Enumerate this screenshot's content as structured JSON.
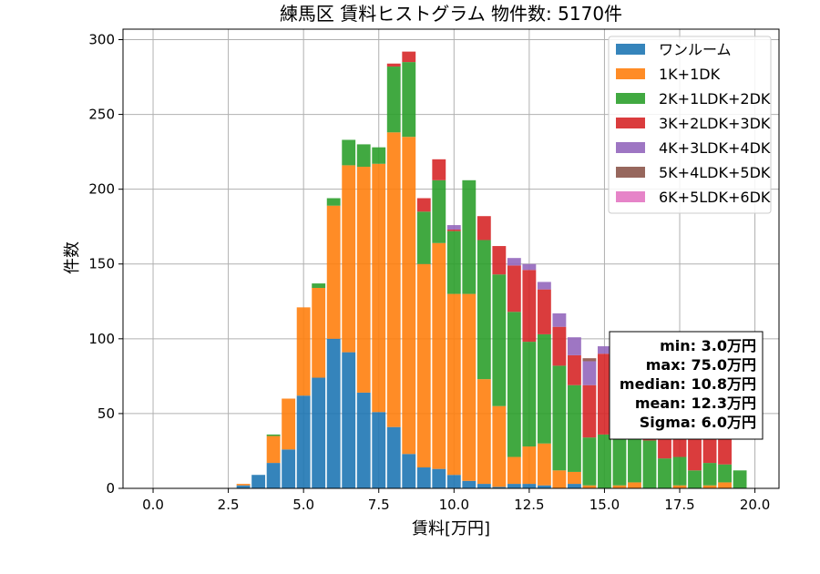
{
  "chart_data": {
    "type": "bar",
    "stacked": true,
    "title": "練馬区 賃料ヒストグラム 物件数: 5170件",
    "xlabel": "賃料[万円]",
    "ylabel": "件数",
    "xlim": [
      -1.0,
      20.8
    ],
    "ylim": [
      0,
      307
    ],
    "xticks": [
      "0.0",
      "2.5",
      "5.0",
      "7.5",
      "10.0",
      "12.5",
      "15.0",
      "17.5",
      "20.0"
    ],
    "yticks": [
      "0",
      "50",
      "100",
      "150",
      "200",
      "250",
      "300"
    ],
    "grid": true,
    "legend_position": "top-right",
    "bin_width": 0.5,
    "x": [
      3.0,
      3.5,
      4.0,
      4.5,
      5.0,
      5.5,
      6.0,
      6.5,
      7.0,
      7.5,
      8.0,
      8.5,
      9.0,
      9.5,
      10.0,
      10.5,
      11.0,
      11.5,
      12.0,
      12.5,
      13.0,
      13.5,
      14.0,
      14.5,
      15.0,
      15.5,
      16.0,
      16.5,
      17.0,
      17.5,
      18.0,
      18.5,
      19.0,
      19.5
    ],
    "series": [
      {
        "name": "ワンルーム",
        "color": "#1f77b4",
        "values": [
          2,
          9,
          17,
          26,
          62,
          74,
          100,
          91,
          64,
          51,
          41,
          23,
          14,
          13,
          9,
          5,
          3,
          1,
          3,
          3,
          2,
          0,
          3,
          0,
          0,
          0,
          0,
          0,
          0,
          0,
          0,
          0,
          0,
          0
        ]
      },
      {
        "name": "1K+1DK",
        "color": "#ff7f0e",
        "values": [
          1,
          0,
          18,
          34,
          59,
          60,
          89,
          125,
          151,
          166,
          197,
          212,
          136,
          151,
          121,
          125,
          70,
          54,
          18,
          25,
          28,
          12,
          8,
          2,
          0,
          2,
          4,
          0,
          0,
          2,
          0,
          2,
          4,
          0
        ]
      },
      {
        "name": "2K+1LDK+2DK",
        "color": "#2ca02c",
        "values": [
          0,
          0,
          1,
          0,
          0,
          3,
          5,
          17,
          15,
          11,
          44,
          50,
          35,
          42,
          42,
          76,
          93,
          88,
          97,
          70,
          73,
          70,
          58,
          32,
          36,
          36,
          31,
          32,
          20,
          19,
          12,
          15,
          12,
          12
        ]
      },
      {
        "name": "3K+2LDK+3DK",
        "color": "#d62728",
        "values": [
          0,
          0,
          0,
          0,
          0,
          0,
          0,
          0,
          0,
          0,
          2,
          7,
          9,
          14,
          1,
          0,
          16,
          19,
          31,
          48,
          30,
          26,
          20,
          35,
          54,
          52,
          57,
          43,
          35,
          40,
          37,
          30,
          32,
          0
        ]
      },
      {
        "name": "4K+3LDK+4DK",
        "color": "#9467bd",
        "values": [
          0,
          0,
          0,
          0,
          0,
          0,
          0,
          0,
          0,
          0,
          0,
          0,
          0,
          0,
          3,
          0,
          0,
          0,
          5,
          4,
          5,
          9,
          12,
          16,
          5,
          7,
          9,
          0,
          0,
          0,
          0,
          0,
          0,
          0
        ]
      },
      {
        "name": "5K+4LDK+5DK",
        "color": "#8c564b",
        "values": [
          0,
          0,
          0,
          0,
          0,
          0,
          0,
          0,
          0,
          0,
          0,
          0,
          0,
          0,
          0,
          0,
          0,
          0,
          0,
          0,
          0,
          0,
          0,
          2,
          0,
          0,
          0,
          0,
          0,
          0,
          0,
          0,
          0,
          0
        ]
      },
      {
        "name": "6K+5LDK+6DK",
        "color": "#e377c2",
        "values": [
          0,
          0,
          0,
          0,
          0,
          0,
          0,
          0,
          0,
          0,
          0,
          0,
          0,
          0,
          0,
          0,
          0,
          0,
          0,
          0,
          0,
          0,
          0,
          0,
          0,
          0,
          0,
          0,
          0,
          0,
          0,
          0,
          0,
          0
        ]
      }
    ],
    "annotation": {
      "lines": [
        "min: 3.0万円",
        "max: 75.0万円",
        "median: 10.8万円",
        "mean: 12.3万円",
        "Sigma: 6.0万円"
      ]
    }
  }
}
